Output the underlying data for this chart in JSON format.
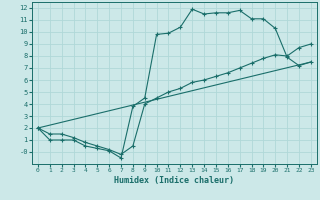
{
  "xlabel": "Humidex (Indice chaleur)",
  "bg_color": "#cce8e8",
  "line_color": "#1a6e6a",
  "grid_color": "#b0d8d8",
  "xlim": [
    -0.5,
    23.5
  ],
  "ylim": [
    -1.0,
    12.5
  ],
  "xticks": [
    0,
    1,
    2,
    3,
    4,
    5,
    6,
    7,
    8,
    9,
    10,
    11,
    12,
    13,
    14,
    15,
    16,
    17,
    18,
    19,
    20,
    21,
    22,
    23
  ],
  "yticks": [
    0,
    1,
    2,
    3,
    4,
    5,
    6,
    7,
    8,
    9,
    10,
    11,
    12
  ],
  "ytick_labels": [
    "-0",
    "1",
    "2",
    "3",
    "4",
    "5",
    "6",
    "7",
    "8",
    "9",
    "10",
    "11",
    "12"
  ],
  "line1_x": [
    0,
    1,
    2,
    3,
    4,
    5,
    6,
    7,
    8,
    9,
    10,
    11,
    12,
    13,
    14,
    15,
    16,
    17,
    18,
    19,
    20,
    21,
    22,
    23
  ],
  "line1_y": [
    2,
    1,
    1,
    1,
    0.5,
    0.3,
    0.1,
    -0.5,
    3.8,
    4.5,
    9.8,
    9.9,
    10.4,
    11.9,
    11.5,
    11.6,
    11.6,
    11.8,
    11.1,
    11.1,
    10.3,
    7.9,
    7.2,
    7.5
  ],
  "line2_x": [
    0,
    1,
    2,
    3,
    4,
    5,
    6,
    7,
    8,
    9,
    10,
    11,
    12,
    13,
    14,
    15,
    16,
    17,
    18,
    19,
    20,
    21,
    22,
    23
  ],
  "line2_y": [
    2,
    1.5,
    1.5,
    1.2,
    0.8,
    0.5,
    0.2,
    -0.2,
    0.5,
    4.0,
    4.5,
    5.0,
    5.3,
    5.8,
    6.0,
    6.3,
    6.6,
    7.0,
    7.4,
    7.8,
    8.1,
    8.0,
    8.7,
    9.0
  ],
  "line3_x": [
    0,
    23
  ],
  "line3_y": [
    2,
    7.5
  ]
}
